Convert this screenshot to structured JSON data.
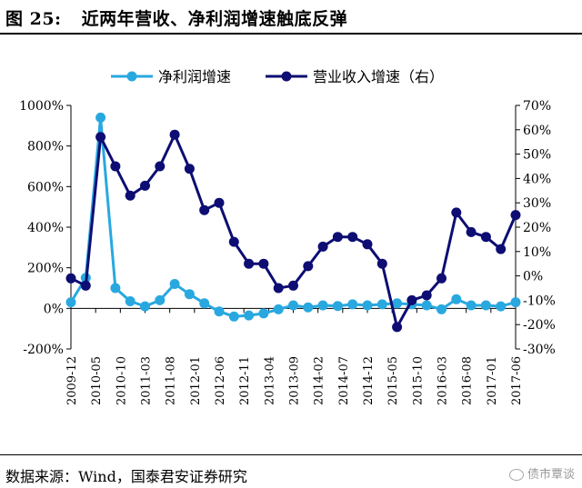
{
  "figure": {
    "label": "图 25:",
    "title": "近两年营收、净利润增速触底反弹",
    "source": "数据来源：Wind，国泰君安证券研究",
    "watermark": "债市覃谈"
  },
  "chart_data": {
    "type": "line",
    "title": "",
    "x_ticks": [
      "2009-12",
      "2010-05",
      "2010-10",
      "2011-03",
      "2011-08",
      "2012-01",
      "2012-06",
      "2012-11",
      "2013-04",
      "2013-09",
      "2014-02",
      "2014-07",
      "2014-12",
      "2015-05",
      "2015-10",
      "2016-03",
      "2016-08",
      "2017-01",
      "2017-06"
    ],
    "x_start": "2009-12",
    "x_end": "2017-06",
    "legend_position": "top-center",
    "grid": false,
    "y_left": {
      "range": [
        -200,
        1000
      ],
      "ticks": [
        -200,
        0,
        200,
        400,
        600,
        800,
        1000
      ],
      "tick_labels": [
        "-200%",
        "0%",
        "200%",
        "400%",
        "600%",
        "800%",
        "1000%"
      ]
    },
    "y_right": {
      "range": [
        -30,
        70
      ],
      "ticks": [
        -30,
        -20,
        -10,
        0,
        10,
        20,
        30,
        40,
        50,
        60,
        70
      ],
      "tick_labels": [
        "-30%",
        "-20%",
        "-10%",
        "0%",
        "10%",
        "20%",
        "30%",
        "40%",
        "50%",
        "60%",
        "70%"
      ]
    },
    "series": [
      {
        "name": "净利润增速",
        "axis": "left",
        "color": "#29A8E0",
        "x": [
          "2009-12",
          "2010-03",
          "2010-06",
          "2010-09",
          "2010-12",
          "2011-03",
          "2011-06",
          "2011-09",
          "2011-12",
          "2012-03",
          "2012-06",
          "2012-09",
          "2012-12",
          "2013-03",
          "2013-06",
          "2013-09",
          "2013-12",
          "2014-03",
          "2014-06",
          "2014-09",
          "2014-12",
          "2015-03",
          "2015-06",
          "2015-09",
          "2015-12",
          "2016-03",
          "2016-06",
          "2016-09",
          "2016-12",
          "2017-03",
          "2017-06"
        ],
        "values": [
          30,
          150,
          940,
          100,
          35,
          10,
          40,
          120,
          70,
          25,
          -15,
          -40,
          -35,
          -25,
          -5,
          15,
          5,
          15,
          12,
          20,
          15,
          20,
          25,
          20,
          15,
          -5,
          45,
          15,
          15,
          10,
          30
        ]
      },
      {
        "name": "营业收入增速（右）",
        "axis": "right",
        "color": "#0D0D73",
        "x": [
          "2009-12",
          "2010-03",
          "2010-06",
          "2010-09",
          "2010-12",
          "2011-03",
          "2011-06",
          "2011-09",
          "2011-12",
          "2012-03",
          "2012-06",
          "2012-09",
          "2012-12",
          "2013-03",
          "2013-06",
          "2013-09",
          "2013-12",
          "2014-03",
          "2014-06",
          "2014-09",
          "2014-12",
          "2015-03",
          "2015-06",
          "2015-09",
          "2015-12",
          "2016-03",
          "2016-06",
          "2016-09",
          "2016-12",
          "2017-03",
          "2017-06"
        ],
        "values": [
          -1,
          -4,
          57,
          45,
          33,
          37,
          45,
          58,
          44,
          27,
          30,
          14,
          5,
          5,
          -5,
          -4,
          4,
          12,
          16,
          16,
          13,
          5,
          -21,
          -10,
          -8,
          -1,
          26,
          18,
          16,
          11,
          25
        ]
      }
    ]
  }
}
